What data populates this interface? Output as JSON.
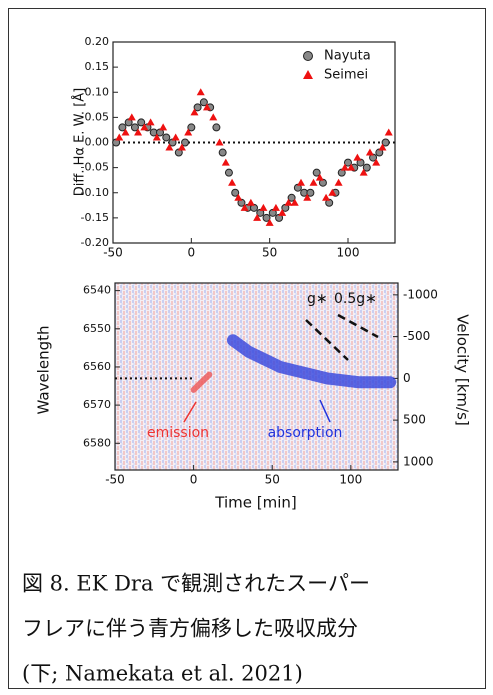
{
  "chart_data": [
    {
      "type": "scatter",
      "ylabel": "Diff. Hα E. W. [Å]",
      "xlim": [
        -50,
        130
      ],
      "xticks": [
        -50,
        0,
        50,
        100
      ],
      "ylim": [
        -0.2,
        0.2
      ],
      "yticks": [
        {
          "value": -0.2,
          "label": "-0.20"
        },
        {
          "value": -0.15,
          "label": "-0.15"
        },
        {
          "value": -0.1,
          "label": "-0.10"
        },
        {
          "value": -0.05,
          "label": "-0.05"
        },
        {
          "value": 0,
          "label": "0.00"
        },
        {
          "value": 0.05,
          "label": "0.05"
        },
        {
          "value": 0.1,
          "label": "0.10"
        },
        {
          "value": 0.15,
          "label": "0.15"
        },
        {
          "value": 0.2,
          "label": "0.20"
        }
      ],
      "reference_line": 0,
      "legend": "upper right",
      "series": [
        {
          "name": "Nayuta",
          "color": "#888888",
          "marker": "circle",
          "x": [
            -48,
            -44,
            -40,
            -36,
            -32,
            -28,
            -24,
            -20,
            -16,
            -12,
            -8,
            -4,
            0,
            4,
            8,
            12,
            16,
            20,
            24,
            28,
            32,
            36,
            40,
            44,
            48,
            52,
            56,
            60,
            64,
            68,
            72,
            76,
            80,
            84,
            88,
            92,
            96,
            100,
            104,
            108,
            112,
            116,
            120,
            124
          ],
          "values": [
            0.0,
            0.03,
            0.04,
            0.03,
            0.04,
            0.03,
            0.02,
            0.02,
            0.01,
            0.0,
            -0.02,
            0.0,
            0.03,
            0.07,
            0.08,
            0.07,
            0.03,
            -0.02,
            -0.06,
            -0.1,
            -0.12,
            -0.13,
            -0.13,
            -0.14,
            -0.15,
            -0.14,
            -0.15,
            -0.13,
            -0.11,
            -0.09,
            -0.1,
            -0.1,
            -0.06,
            -0.08,
            -0.12,
            -0.1,
            -0.06,
            -0.04,
            -0.05,
            -0.04,
            -0.05,
            -0.03,
            -0.02,
            0.0
          ]
        },
        {
          "name": "Seimei",
          "color": "#ee1111",
          "marker": "triangle",
          "x": [
            -46,
            -42,
            -38,
            -34,
            -30,
            -26,
            -22,
            -18,
            -14,
            -10,
            -6,
            -2,
            2,
            6,
            10,
            14,
            18,
            22,
            26,
            30,
            34,
            38,
            42,
            46,
            50,
            54,
            58,
            62,
            66,
            70,
            74,
            78,
            82,
            86,
            90,
            94,
            98,
            102,
            106,
            110,
            114,
            118,
            122,
            126
          ],
          "values": [
            0.01,
            0.02,
            0.05,
            0.02,
            0.03,
            0.04,
            0.01,
            0.03,
            -0.01,
            0.01,
            -0.01,
            0.02,
            0.06,
            0.1,
            0.07,
            0.05,
            0.0,
            -0.04,
            -0.08,
            -0.11,
            -0.13,
            -0.12,
            -0.15,
            -0.13,
            -0.16,
            -0.13,
            -0.14,
            -0.12,
            -0.12,
            -0.08,
            -0.11,
            -0.08,
            -0.07,
            -0.11,
            -0.1,
            -0.08,
            -0.05,
            -0.05,
            -0.03,
            -0.06,
            -0.02,
            -0.04,
            -0.01,
            0.02
          ]
        }
      ]
    },
    {
      "type": "spectrogram",
      "xlabel": "Time [min]",
      "ylabel": "Wavelength",
      "y2label": "Velocity [km/s]",
      "xlim": [
        -50,
        130
      ],
      "xticks": [
        -50,
        0,
        50,
        100
      ],
      "ylim": [
        6538,
        6587
      ],
      "yticks": [
        6540,
        6550,
        6560,
        6570,
        6580
      ],
      "y_inverted": true,
      "y2lim": [
        -1142,
        1097
      ],
      "y2ticks": [
        -1000,
        -500,
        0,
        500,
        1000
      ],
      "reference_line": 6563,
      "series": [
        {
          "color": "#3344dd",
          "x": [
            25,
            35,
            45,
            55,
            65,
            75,
            85,
            95,
            105,
            115,
            125
          ],
          "values": [
            6553,
            6556,
            6558,
            6560,
            6561,
            6562,
            6563,
            6563.5,
            6564,
            6564,
            6564
          ]
        },
        {
          "color": "#ee5555",
          "x": [
            0,
            5,
            10
          ],
          "values": [
            6566,
            6564,
            6562
          ]
        }
      ],
      "annotations": [
        "emission",
        "absorption",
        "g∗",
        "0.5g∗"
      ]
    }
  ],
  "caption": [
    "図 8. EK Dra で観測されたスーパー",
    "フレアに伴う青方偏移した吸収成分",
    "(下; Namekata et al. 2021)"
  ]
}
